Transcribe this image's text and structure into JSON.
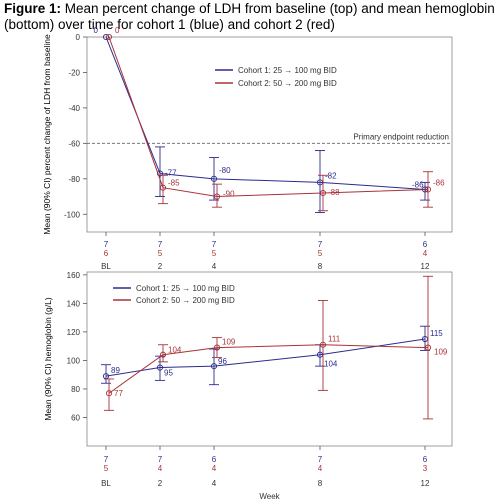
{
  "figure": {
    "title_prefix": "Figure 1:",
    "title_text": "Mean percent change of LDH from baseline (top) and mean hemoglobin (bottom) over time for cohort 1 (blue) and cohort 2 (red)"
  },
  "colors": {
    "cohort1": "#2b2b8f",
    "cohort2": "#a8323a",
    "axis": "#555555",
    "refline": "#777777"
  },
  "chart_data": [
    {
      "type": "line",
      "title": "",
      "ylabel": "Mean (90% CI) percent change of LDH from baseline",
      "xlabel": "",
      "ylim": [
        -110,
        0
      ],
      "yticks": [
        0,
        -20,
        -40,
        -60,
        -80,
        -100
      ],
      "x": [
        0,
        2,
        4,
        8,
        12
      ],
      "xticklabels": [
        "BL",
        "2",
        "4",
        "8",
        "12"
      ],
      "reference_line": {
        "y": -60,
        "label": "Primary endpoint reduction"
      },
      "legend_placement": "top-right",
      "series": [
        {
          "name": "Cohort 1: 25 → 100 mg BID",
          "values": [
            0,
            -77,
            -80,
            -82,
            -86
          ],
          "ci_low": [
            null,
            -90,
            -92,
            -99,
            -92
          ],
          "ci_high": [
            null,
            -62,
            -68,
            -64,
            -82
          ],
          "labels": [
            "0",
            "-77",
            "-80",
            "-82",
            "-86"
          ],
          "n": [
            "7",
            "7",
            "7",
            "7",
            "6"
          ]
        },
        {
          "name": "Cohort 2: 50 → 200 mg BID",
          "values": [
            0,
            -85,
            -90,
            -88,
            -86
          ],
          "ci_low": [
            null,
            -94,
            -96,
            -98,
            -96
          ],
          "ci_high": [
            null,
            -78,
            -83,
            -78,
            -76
          ],
          "labels": [
            "0",
            "-85",
            "-90",
            "-88",
            "-86"
          ],
          "n": [
            "6",
            "5",
            "5",
            "5",
            "4"
          ]
        }
      ]
    },
    {
      "type": "line",
      "title": "",
      "ylabel": "Mean (90% CI) hemoglobin (g/L)",
      "xlabel": "Week",
      "ylim": [
        40,
        162
      ],
      "yticks": [
        60,
        80,
        100,
        120,
        140,
        160
      ],
      "x": [
        0,
        2,
        4,
        8,
        12
      ],
      "xticklabels": [
        "BL",
        "2",
        "4",
        "8",
        "12"
      ],
      "legend_placement": "top-left",
      "series": [
        {
          "name": "Cohort 1: 25 → 100 mg BID",
          "values": [
            89,
            95,
            96,
            104,
            115
          ],
          "ci_low": [
            84,
            86,
            83,
            96,
            107
          ],
          "ci_high": [
            97,
            103,
            108,
            111,
            124
          ],
          "labels": [
            "89",
            "95",
            "96",
            "104",
            "115"
          ],
          "n": [
            "7",
            "7",
            "6",
            "7",
            "6"
          ]
        },
        {
          "name": "Cohort 2: 50 → 200 mg BID",
          "values": [
            77,
            104,
            109,
            111,
            109
          ],
          "ci_low": [
            65,
            99,
            102,
            79,
            59
          ],
          "ci_high": [
            87,
            111,
            116,
            142,
            159
          ],
          "labels": [
            "77",
            "104",
            "109",
            "111",
            "109"
          ],
          "n": [
            "5",
            "4",
            "4",
            "4",
            "3"
          ]
        }
      ]
    }
  ]
}
